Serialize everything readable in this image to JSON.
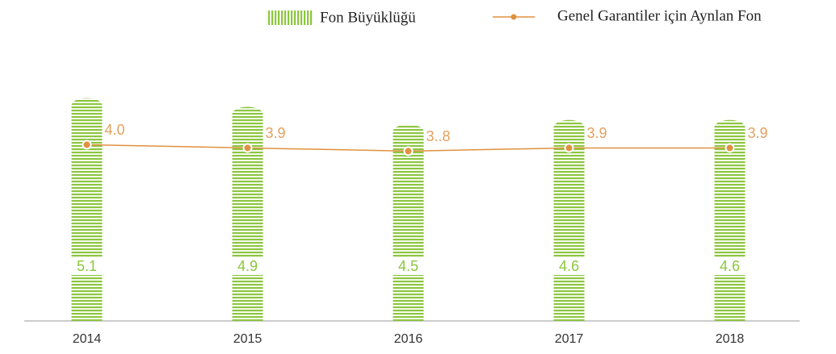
{
  "chart_data": {
    "type": "bar",
    "categories": [
      "2014",
      "2015",
      "2016",
      "2017",
      "2018"
    ],
    "ylim": [
      0,
      5.5
    ],
    "y2lim": [
      -1.5,
      6
    ],
    "series": [
      {
        "name": "Fon Büyüklüğü",
        "type": "bar",
        "color": "#8cc63f",
        "values": [
          5.1,
          4.9,
          4.5,
          4.6,
          4.6
        ]
      },
      {
        "name": "Genel Garantiler için Aynlan Fon",
        "type": "line",
        "axis": "y2",
        "color": "#e0913f",
        "values": [
          4.0,
          3.9,
          3.8,
          3.9,
          3.9
        ],
        "value_labels": [
          "4.0",
          "3.9",
          "3..8",
          "3.9",
          "3.9"
        ]
      }
    ]
  }
}
